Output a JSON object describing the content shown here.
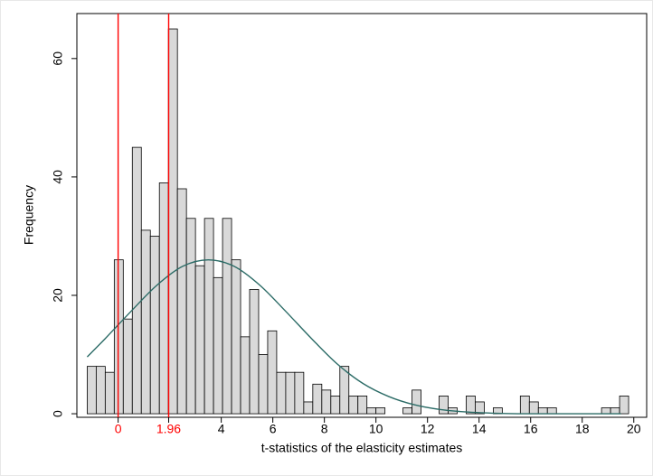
{
  "chart_data": {
    "type": "histogram",
    "x_label": "t-statistics of the elasticity estimates",
    "y_label": "Frequency",
    "bins": [
      -1.2,
      -0.85,
      -0.5,
      -0.15,
      0.2,
      0.55,
      0.9,
      1.25,
      1.6,
      1.95,
      2.3,
      2.65,
      3,
      3.35,
      3.7,
      4.05,
      4.4,
      4.75,
      5.1,
      5.45,
      5.8,
      6.15,
      6.5,
      6.85,
      7.2,
      7.55,
      7.9,
      8.25,
      8.6,
      8.95,
      9.3,
      9.65,
      10,
      10.35,
      10.7,
      11.05,
      11.4,
      11.75,
      12.1,
      12.45,
      12.8,
      13.15,
      13.5,
      13.85,
      14.2,
      14.55,
      14.9,
      15.25,
      15.6,
      15.95,
      16.3,
      16.65,
      17,
      17.35,
      17.7,
      18.05,
      18.4,
      18.75,
      19.1,
      19.45,
      19.8
    ],
    "values": [
      8,
      8,
      7,
      26,
      16,
      45,
      31,
      30,
      39,
      65,
      38,
      33,
      25,
      33,
      23,
      33,
      26,
      13,
      21,
      10,
      14,
      7,
      7,
      7,
      2,
      5,
      4,
      3,
      8,
      3,
      3,
      1,
      1,
      0,
      0,
      1,
      4,
      0,
      0,
      3,
      1,
      0,
      3,
      2,
      0,
      1,
      0,
      0,
      3,
      2,
      1,
      1,
      0,
      0,
      0,
      0,
      0,
      1,
      1,
      3
    ],
    "color": "#d9d9d9",
    "edge_color": "#000000",
    "curve": {
      "color": "#2b6b66",
      "x": [
        -1.2,
        -0.5,
        0.5,
        1.5,
        2.5,
        3.5,
        4.5,
        5.5,
        6.5,
        7.5,
        8.5,
        9.5,
        10.5,
        11.5,
        12.5,
        13.5,
        14.5,
        15.5,
        16.5,
        17.5,
        18.5,
        19.5
      ],
      "values": [
        9.6,
        12.7,
        17.3,
        21.7,
        24.9,
        26,
        24.9,
        21.7,
        17.3,
        12.7,
        8.4,
        5.1,
        2.9,
        1.5,
        0.7,
        0.3,
        0.1,
        0,
        0,
        0,
        0,
        0
      ]
    },
    "vlines": [
      {
        "value": 0,
        "label": "0"
      },
      {
        "value": 1.96,
        "label": "1.96"
      }
    ],
    "vline_color": "#ff0000",
    "xlim": [
      -1.6,
      20.5
    ],
    "ylim": [
      -0.6,
      67.6
    ],
    "xticks": [
      4,
      6,
      8,
      10,
      12,
      14,
      16,
      18,
      20
    ],
    "yticks": [
      0,
      20,
      40,
      60
    ]
  }
}
